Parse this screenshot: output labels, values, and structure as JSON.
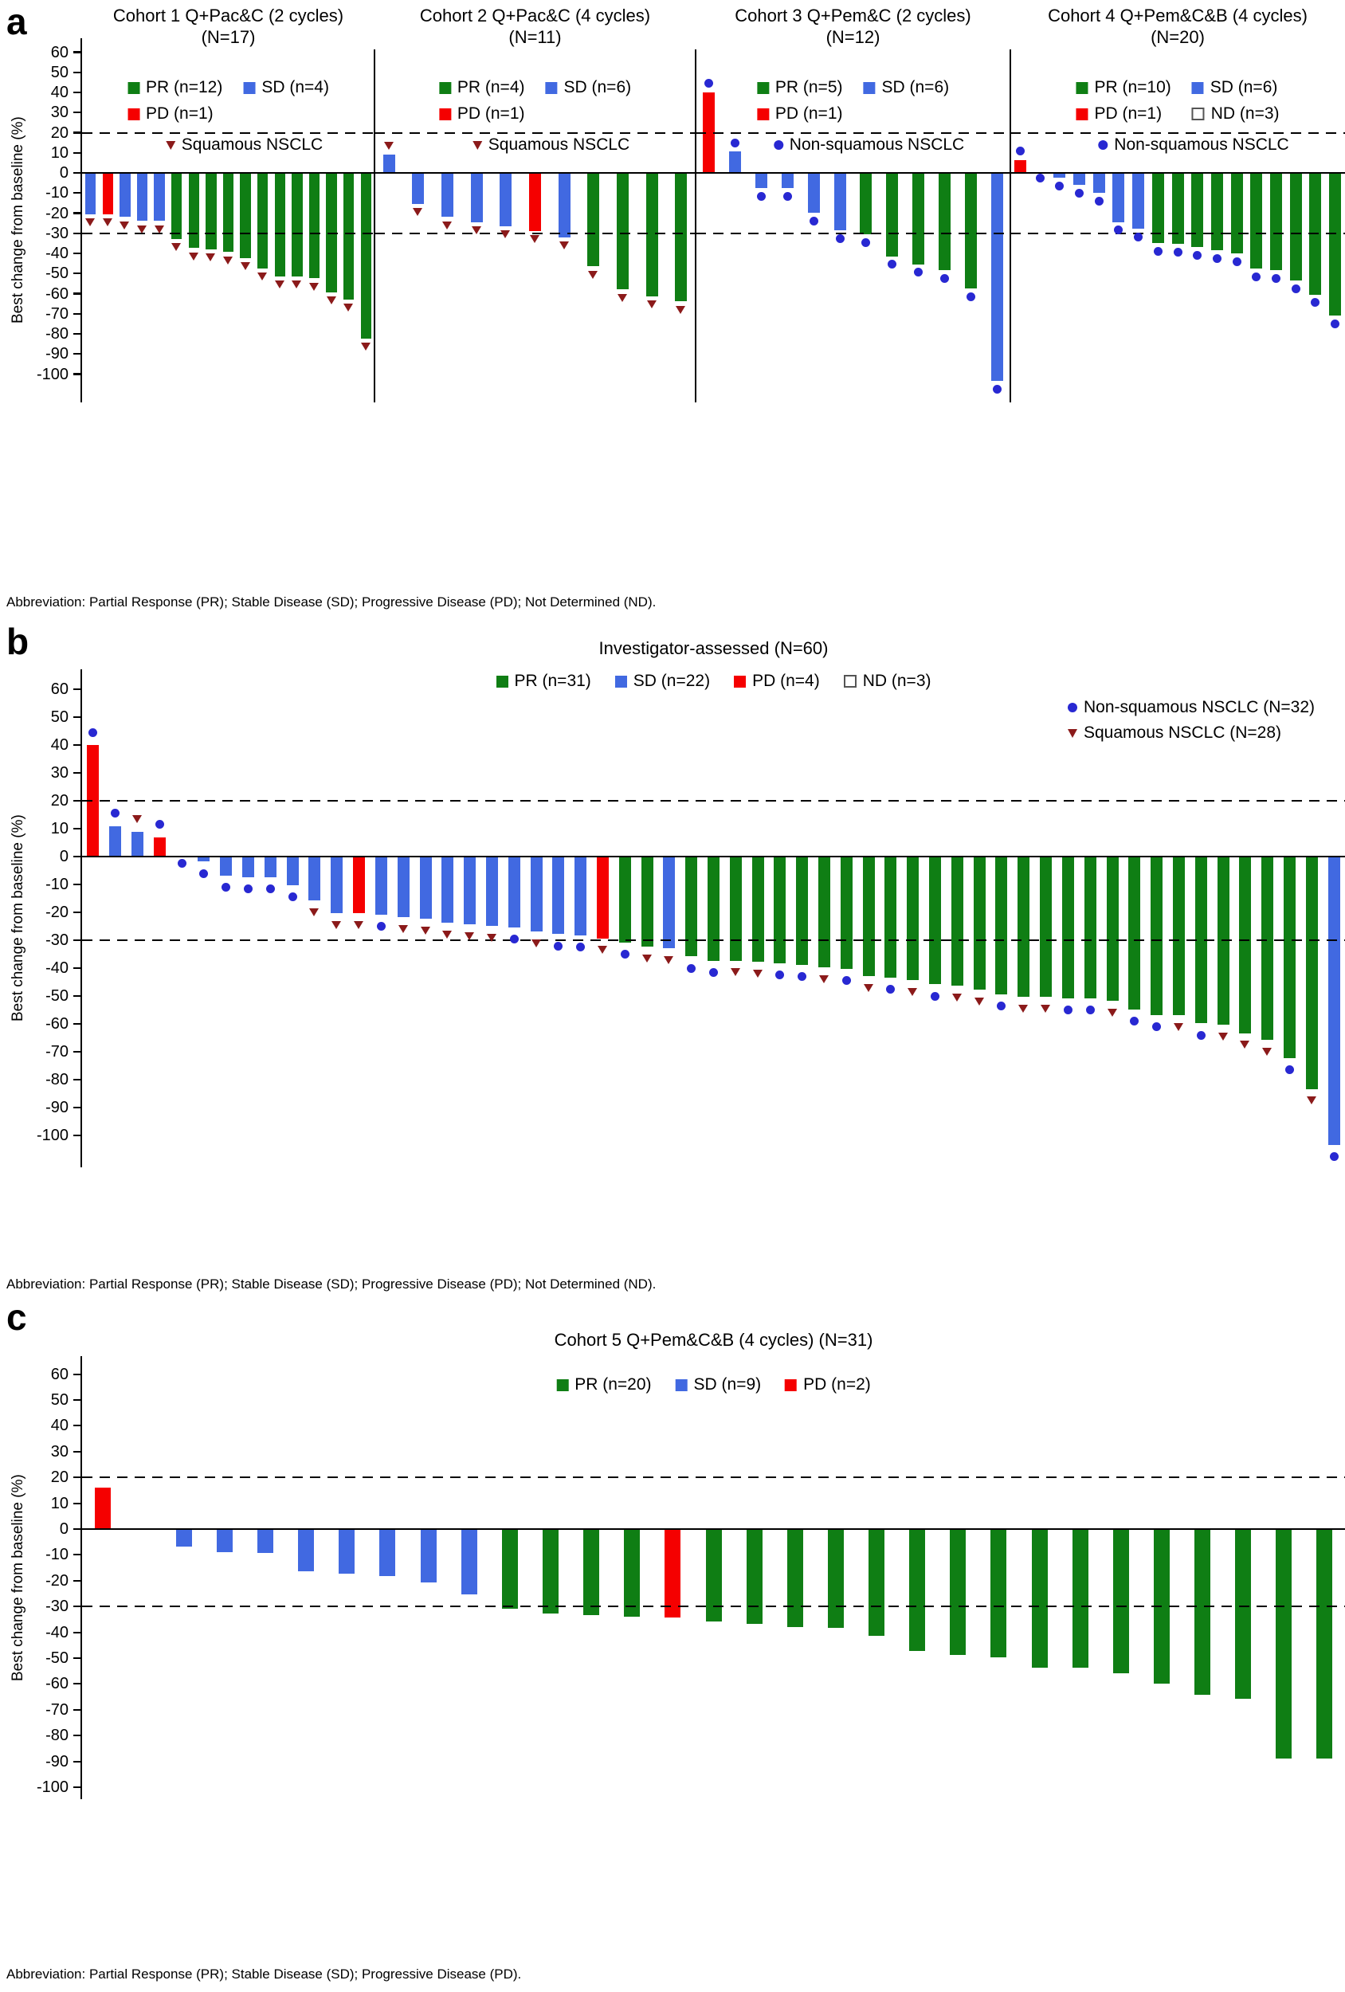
{
  "figure": {
    "background": "#ffffff"
  },
  "colors": {
    "pr_green": "#0f7e14",
    "sd_blue": "#4169e1",
    "pd_red": "#f50000",
    "nd_white": "#ffffff",
    "squamous_triangle": "#8b1a1a",
    "nonsquamous_dot": "#2828d2",
    "axis_black": "#000000"
  },
  "axis": {
    "label": "Best change from baseline (%)",
    "yticks": [
      60,
      50,
      40,
      30,
      20,
      10,
      0,
      -10,
      -20,
      -30,
      -40,
      -50,
      -60,
      -70,
      -80,
      -90,
      -100
    ],
    "reference_lines": [
      20,
      -30
    ],
    "ylim": [
      -110,
      67
    ]
  },
  "panel_a": {
    "letter": "a",
    "abbreviation": "Abbreviation: Partial Response (PR); Stable Disease (SD); Progressive Disease (PD); Not Determined (ND)."
  },
  "panel_b": {
    "letter": "b",
    "abbreviation": "Abbreviation: Partial Response (PR); Stable Disease (SD); Progressive Disease (PD); Not Determined (ND)."
  },
  "panel_c": {
    "letter": "c",
    "abbreviation": "Abbreviation: Partial Response (PR); Stable Disease (SD); Progressive Disease (PD)."
  },
  "chart_data": [
    {
      "panel": "a",
      "slot": 0,
      "type": "bar",
      "title": "Cohort 1 Q+Pac&C (2 cycles)",
      "subtitle": "(N=17)",
      "ylabel": "Best change from baseline (%)",
      "ylim": [
        -110,
        67
      ],
      "reference_lines": [
        20,
        -30
      ],
      "legend": [
        {
          "label": "PR (n=12)",
          "key": "PR"
        },
        {
          "label": "SD (n=4)",
          "key": "SD"
        },
        {
          "label": "PD (n=1)",
          "key": "PD"
        }
      ],
      "marker_legend": [
        {
          "marker": "squamous",
          "label": "Squamous NSCLC"
        }
      ],
      "bars": {
        "values": [
          -20,
          -20,
          -21.5,
          -23.5,
          -23.5,
          -32.5,
          -37,
          -37.5,
          -39,
          -42,
          -47,
          -51,
          -51,
          -52,
          -59,
          -62.5,
          -82
        ],
        "responses": [
          "SD",
          "PD",
          "SD",
          "SD",
          "SD",
          "PR",
          "PR",
          "PR",
          "PR",
          "PR",
          "PR",
          "PR",
          "PR",
          "PR",
          "PR",
          "PR",
          "PR"
        ],
        "markers": [
          "sq",
          "sq",
          "sq",
          "sq",
          "sq",
          "sq",
          "sq",
          "sq",
          "sq",
          "sq",
          "sq",
          "sq",
          "sq",
          "sq",
          "sq",
          "sq",
          "sq"
        ]
      }
    },
    {
      "panel": "a",
      "slot": 1,
      "type": "bar",
      "title": "Cohort 2 Q+Pac&C (4 cycles)",
      "subtitle": "(N=11)",
      "ylabel": "Best change from baseline (%)",
      "ylim": [
        -110,
        67
      ],
      "reference_lines": [
        20,
        -30
      ],
      "legend": [
        {
          "label": "PR (n=4)",
          "key": "PR"
        },
        {
          "label": "SD (n=6)",
          "key": "SD"
        },
        {
          "label": "PD (n=1)",
          "key": "PD"
        }
      ],
      "marker_legend": [
        {
          "marker": "squamous",
          "label": "Squamous NSCLC"
        }
      ],
      "bars": {
        "values": [
          9,
          -15,
          -21.5,
          -24,
          -26,
          -28.5,
          -31.5,
          -46,
          -57.5,
          -61,
          -63.5
        ],
        "responses": [
          "SD",
          "SD",
          "SD",
          "SD",
          "SD",
          "PD",
          "SD",
          "PR",
          "PR",
          "PR",
          "PR"
        ],
        "markers": [
          "sq",
          "sq",
          "sq",
          "sq",
          "sq",
          "sq",
          "sq",
          "sq",
          "sq",
          "sq",
          "sq"
        ]
      }
    },
    {
      "panel": "a",
      "slot": 2,
      "type": "bar",
      "title": "Cohort 3 Q+Pem&C (2 cycles)",
      "subtitle": "(N=12)",
      "ylabel": "Best change from baseline (%)",
      "ylim": [
        -110,
        67
      ],
      "reference_lines": [
        20,
        -30
      ],
      "legend": [
        {
          "label": "PR (n=5)",
          "key": "PR"
        },
        {
          "label": "SD (n=6)",
          "key": "SD"
        },
        {
          "label": "PD (n=1)",
          "key": "PD"
        }
      ],
      "marker_legend": [
        {
          "marker": "non-squamous",
          "label": "Non-squamous NSCLC"
        }
      ],
      "bars": {
        "values": [
          40,
          10.5,
          -7,
          -7,
          -19.5,
          -28,
          -30,
          -41,
          -45,
          -48,
          -57,
          -103
        ],
        "responses": [
          "PD",
          "SD",
          "SD",
          "SD",
          "SD",
          "SD",
          "PR",
          "PR",
          "PR",
          "PR",
          "PR",
          "SD"
        ],
        "markers": [
          "ns",
          "ns",
          "ns",
          "ns",
          "ns",
          "ns",
          "ns",
          "ns",
          "ns",
          "ns",
          "ns",
          "ns"
        ]
      }
    },
    {
      "panel": "a",
      "slot": 3,
      "type": "bar",
      "title": "Cohort 4 Q+Pem&C&B (4 cycles)",
      "subtitle": "(N=20)",
      "ylabel": "Best change from baseline (%)",
      "ylim": [
        -110,
        67
      ],
      "reference_lines": [
        20,
        -30
      ],
      "legend": [
        {
          "label": "PR (n=10)",
          "key": "PR"
        },
        {
          "label": "SD (n=6)",
          "key": "SD"
        },
        {
          "label": "PD (n=1)",
          "key": "PD"
        },
        {
          "label": "ND (n=3)",
          "key": "ND"
        }
      ],
      "marker_legend": [
        {
          "marker": "non-squamous",
          "label": "Non-squamous NSCLC"
        }
      ],
      "bars": {
        "values": [
          6.5,
          0,
          -2,
          -5.5,
          -9.5,
          -24,
          -27.5,
          -34.5,
          -35,
          -36.5,
          -38,
          -39.5,
          -47,
          -48,
          -53,
          -60,
          -70.5
        ],
        "responses": [
          "PD",
          "SD",
          "SD",
          "SD",
          "SD",
          "SD",
          "SD",
          "PR",
          "PR",
          "PR",
          "PR",
          "PR",
          "PR",
          "PR",
          "PR",
          "PR",
          "PR"
        ],
        "markers": [
          "ns",
          "ns",
          "ns",
          "ns",
          "ns",
          "ns",
          "ns",
          "ns",
          "ns",
          "ns",
          "ns",
          "ns",
          "ns",
          "ns",
          "ns",
          "ns",
          "ns"
        ]
      }
    },
    {
      "panel": "b",
      "slot": 0,
      "type": "bar",
      "title": "Investigator-assessed (N=60)",
      "subtitle": "",
      "ylabel": "Best change from baseline (%)",
      "ylim": [
        -110,
        67
      ],
      "reference_lines": [
        20,
        -30
      ],
      "legend": [
        {
          "label": "PR (n=31)",
          "key": "PR"
        },
        {
          "label": "SD (n=22)",
          "key": "SD"
        },
        {
          "label": "PD (n=4)",
          "key": "PD"
        },
        {
          "label": "ND (n=3)",
          "key": "ND"
        }
      ],
      "marker_legend": [
        {
          "marker": "non-squamous",
          "label": "Non-squamous NSCLC (N=32)"
        },
        {
          "marker": "squamous",
          "label": "Squamous NSCLC (N=28)"
        }
      ],
      "bars": {
        "values": [
          40,
          11,
          9,
          7,
          0,
          -1.5,
          -6.5,
          -7,
          -7,
          -10,
          -15.5,
          -20,
          -20,
          -20.5,
          -21.5,
          -22,
          -23.5,
          -24,
          -24.5,
          -25,
          -26.5,
          -27.5,
          -28,
          -29,
          -30.5,
          -32,
          -32.5,
          -35.5,
          -37,
          -37,
          -37.5,
          -38,
          -38.5,
          -39.5,
          -40,
          -42.5,
          -43,
          -44,
          -45.5,
          -46,
          -47.5,
          -49,
          -50,
          -50,
          -50.5,
          -50.5,
          -51.5,
          -54.5,
          -56.5,
          -56.5,
          -59.5,
          -60,
          -63,
          -65.5,
          -72,
          -83,
          -103
        ],
        "responses": [
          "PD",
          "SD",
          "SD",
          "PD",
          "SD",
          "SD",
          "SD",
          "SD",
          "SD",
          "SD",
          "SD",
          "SD",
          "PD",
          "SD",
          "SD",
          "SD",
          "SD",
          "SD",
          "SD",
          "SD",
          "SD",
          "SD",
          "SD",
          "PD",
          "PR",
          "PR",
          "SD",
          "PR",
          "PR",
          "PR",
          "PR",
          "PR",
          "PR",
          "PR",
          "PR",
          "PR",
          "PR",
          "PR",
          "PR",
          "PR",
          "PR",
          "PR",
          "PR",
          "PR",
          "PR",
          "PR",
          "PR",
          "PR",
          "PR",
          "PR",
          "PR",
          "PR",
          "PR",
          "PR",
          "PR",
          "PR",
          "SD"
        ],
        "markers": [
          "ns",
          "ns",
          "sq",
          "ns",
          "ns",
          "ns",
          "ns",
          "ns",
          "ns",
          "ns",
          "sq",
          "sq",
          "sq",
          "ns",
          "sq",
          "sq",
          "sq",
          "sq",
          "sq",
          "ns",
          "sq",
          "ns",
          "ns",
          "sq",
          "ns",
          "sq",
          "sq",
          "ns",
          "ns",
          "sq",
          "sq",
          "ns",
          "ns",
          "sq",
          "ns",
          "sq",
          "ns",
          "sq",
          "ns",
          "sq",
          "sq",
          "ns",
          "sq",
          "sq",
          "ns",
          "ns",
          "sq",
          "ns",
          "ns",
          "sq",
          "ns",
          "sq",
          "sq",
          "sq",
          "ns",
          "sq",
          "ns"
        ]
      }
    },
    {
      "panel": "c",
      "slot": 0,
      "type": "bar",
      "title": "Cohort 5 Q+Pem&C&B (4 cycles) (N=31)",
      "subtitle": "",
      "ylabel": "Best change from baseline (%)",
      "ylim": [
        -110,
        67
      ],
      "reference_lines": [
        20,
        -30
      ],
      "legend": [
        {
          "label": "PR (n=20)",
          "key": "PR"
        },
        {
          "label": "SD (n=9)",
          "key": "SD"
        },
        {
          "label": "PD (n=2)",
          "key": "PD"
        }
      ],
      "marker_legend": [],
      "bars": {
        "values": [
          16,
          0,
          -6.5,
          -8.5,
          -9,
          -16,
          -17,
          -18,
          -20.5,
          -25,
          -30.5,
          -32.5,
          -33,
          -33.5,
          -34,
          -35.5,
          -36.5,
          -37.5,
          -38,
          -41,
          -47,
          -48.5,
          -49.5,
          -53.5,
          -53.5,
          -55.5,
          -59.5,
          -64,
          -65.5,
          -88.5,
          -88.5
        ],
        "responses": [
          "PD",
          "SD",
          "SD",
          "SD",
          "SD",
          "SD",
          "SD",
          "SD",
          "SD",
          "SD",
          "PR",
          "PR",
          "PR",
          "PR",
          "PD",
          "PR",
          "PR",
          "PR",
          "PR",
          "PR",
          "PR",
          "PR",
          "PR",
          "PR",
          "PR",
          "PR",
          "PR",
          "PR",
          "PR",
          "PR",
          "PR"
        ],
        "markers": []
      }
    }
  ]
}
